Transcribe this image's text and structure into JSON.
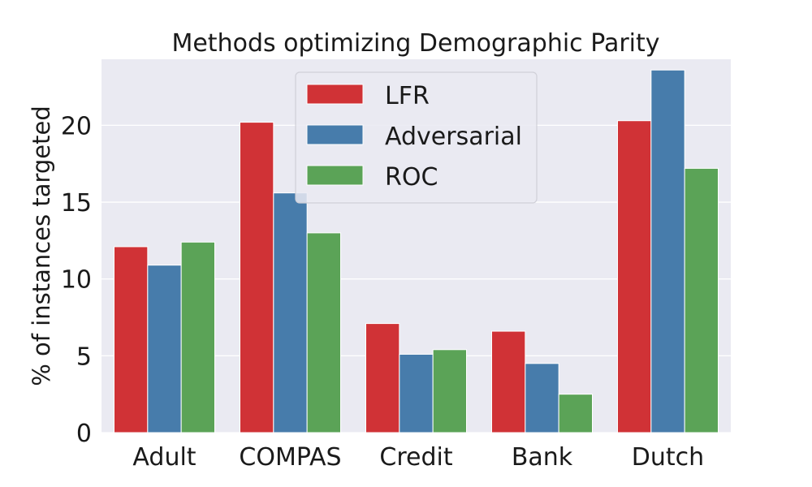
{
  "chart_data": {
    "type": "bar",
    "title": "Methods optimizing Demographic Parity",
    "xlabel": "",
    "ylabel": "% of instances targeted",
    "categories": [
      "Adult",
      "COMPAS",
      "Credit",
      "Bank",
      "Dutch"
    ],
    "series": [
      {
        "name": "LFR",
        "color": "#d03236",
        "values": [
          12.1,
          20.2,
          7.1,
          6.6,
          20.3
        ]
      },
      {
        "name": "Adversarial",
        "color": "#477cab",
        "values": [
          10.9,
          15.6,
          5.1,
          4.5,
          23.6
        ]
      },
      {
        "name": "ROC",
        "color": "#5ba357",
        "values": [
          12.4,
          13.0,
          5.4,
          2.5,
          17.2
        ]
      }
    ],
    "ylim": [
      0,
      24.3
    ],
    "yticks": [
      0,
      5,
      10,
      15,
      20
    ],
    "grid": true,
    "legend_position": "top-center",
    "background": "#eaeaf2"
  }
}
